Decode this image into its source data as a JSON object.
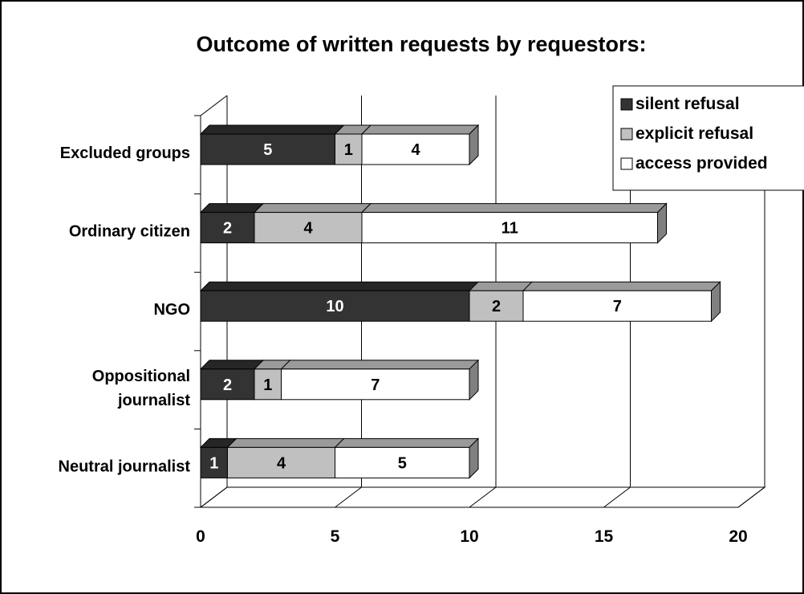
{
  "chart_data": {
    "type": "bar",
    "orientation": "horizontal",
    "stacked": true,
    "style": "3d",
    "title": "Outcome of written requests by requestors:",
    "xlabel": "",
    "ylabel": "",
    "xlim": [
      0,
      20
    ],
    "x_ticks": [
      "0",
      "5",
      "10",
      "15",
      "20"
    ],
    "grid": true,
    "legend_position": "top-right",
    "categories": [
      "Excluded groups",
      "Ordinary citizen",
      "NGO",
      "Oppositional journalist",
      "Neutral journalist"
    ],
    "category_labels": [
      [
        "Excluded groups"
      ],
      [
        "Ordinary citizen"
      ],
      [
        "NGO"
      ],
      [
        "Oppositional",
        "journalist"
      ],
      [
        "Neutral journalist"
      ]
    ],
    "series": [
      {
        "name": "silent refusal",
        "color": "#333333",
        "label_color": "#ffffff",
        "values": [
          5,
          2,
          10,
          2,
          1
        ]
      },
      {
        "name": "explicit refusal",
        "color": "#c0c0c0",
        "label_color": "#000000",
        "values": [
          1,
          4,
          2,
          1,
          4
        ]
      },
      {
        "name": "access provided",
        "color": "#ffffff",
        "label_color": "#000000",
        "values": [
          4,
          11,
          7,
          7,
          5
        ]
      }
    ]
  }
}
